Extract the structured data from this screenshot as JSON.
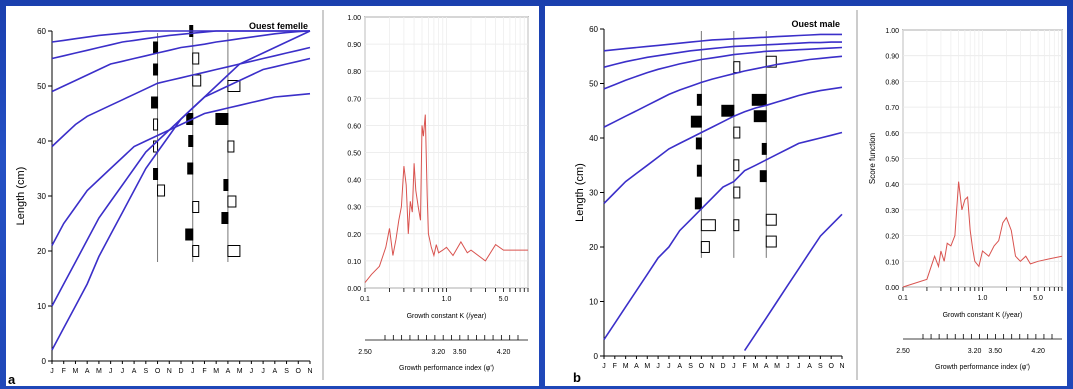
{
  "chart_data": [
    {
      "id": "a",
      "type": "line",
      "panel_letter": "a",
      "title": "Ouest femelle",
      "ylabel": "Length (cm)",
      "ylim": [
        0,
        60
      ],
      "yticks": [
        "0",
        "10",
        "20",
        "30",
        "40",
        "50",
        "60"
      ],
      "month_labels": [
        "J",
        "F",
        "M",
        "A",
        "M",
        "J",
        "J",
        "A",
        "S",
        "O",
        "N",
        "D",
        "J",
        "F",
        "M",
        "A",
        "M",
        "J",
        "J",
        "A",
        "S",
        "O",
        "N"
      ],
      "series": [
        {
          "values": [
            2,
            6,
            10,
            14,
            19,
            23,
            27,
            31,
            35,
            38,
            41,
            44,
            46,
            48,
            50,
            52,
            54,
            55,
            56,
            57,
            58,
            59,
            60
          ]
        },
        {
          "values": [
            10,
            14,
            18,
            22,
            26,
            29,
            32,
            35,
            38,
            40,
            42,
            44,
            46,
            48,
            49,
            50,
            51,
            52,
            53,
            53.5,
            54,
            54.5,
            55
          ]
        },
        {
          "values": [
            21,
            25,
            28,
            31,
            33,
            35,
            37,
            39,
            40,
            41,
            42,
            43,
            44,
            45,
            45.5,
            46,
            46.5,
            47,
            47.5,
            48,
            48.2,
            48.4,
            48.6
          ]
        },
        {
          "values": [
            39,
            41,
            43,
            44.5,
            45.5,
            46.5,
            47.5,
            48.5,
            49.5,
            50.5,
            51,
            51.5,
            52,
            52.5,
            53,
            53.5,
            54,
            54.5,
            55,
            55.5,
            56,
            56.5,
            57
          ]
        },
        {
          "values": [
            49,
            50,
            51,
            52,
            53,
            54,
            54.5,
            55,
            55.5,
            56,
            56.5,
            57,
            57.3,
            57.6,
            58,
            58.3,
            58.6,
            58.9,
            59.2,
            59.5,
            59.7,
            59.9,
            60
          ]
        },
        {
          "values": [
            55,
            55.5,
            56,
            56.5,
            57,
            57.5,
            58,
            58.3,
            58.6,
            58.9,
            59.2,
            59.4,
            59.6,
            59.8,
            60,
            60,
            60,
            60,
            60,
            60,
            60,
            60,
            60
          ]
        },
        {
          "values": [
            58,
            58.3,
            58.6,
            58.9,
            59.2,
            59.4,
            59.6,
            59.8,
            60,
            60,
            60,
            60,
            60,
            60,
            60,
            60,
            60,
            60,
            60,
            60,
            60,
            60,
            60
          ]
        }
      ]
    },
    {
      "id": "a_score",
      "type": "line",
      "xscale": "log",
      "xlabel": "Growth constant K (/year)",
      "x2label": "Growth performance index (φ')",
      "ylim": [
        0,
        1
      ],
      "yticks": [
        "0.00",
        "0.10",
        "0.20",
        "0.30",
        "0.40",
        "0.50",
        "0.60",
        "0.70",
        "0.80",
        "0.90",
        "1.00"
      ],
      "xticks": [
        "0.1",
        "1.0",
        "5.0"
      ],
      "x2ticks": [
        "2.50",
        "3.20",
        "3.50",
        "4.20"
      ],
      "x": [
        0.1,
        0.12,
        0.15,
        0.18,
        0.2,
        0.22,
        0.24,
        0.26,
        0.28,
        0.3,
        0.32,
        0.34,
        0.36,
        0.38,
        0.4,
        0.42,
        0.45,
        0.48,
        0.5,
        0.52,
        0.55,
        0.58,
        0.6,
        0.62,
        0.65,
        0.7,
        0.75,
        0.8,
        0.9,
        1.0,
        1.2,
        1.5,
        1.8,
        2.0,
        3.0,
        4.0,
        5.0,
        7.0,
        10.0
      ],
      "values": [
        0.02,
        0.05,
        0.08,
        0.15,
        0.22,
        0.12,
        0.18,
        0.25,
        0.3,
        0.45,
        0.38,
        0.2,
        0.32,
        0.28,
        0.46,
        0.36,
        0.3,
        0.25,
        0.6,
        0.56,
        0.64,
        0.34,
        0.2,
        0.18,
        0.15,
        0.12,
        0.16,
        0.13,
        0.14,
        0.15,
        0.12,
        0.17,
        0.13,
        0.14,
        0.1,
        0.16,
        0.14,
        0.14,
        0.14
      ]
    },
    {
      "id": "b",
      "type": "line",
      "panel_letter": "b",
      "title": "Ouest male",
      "ylabel": "Length (cm)",
      "ylim": [
        0,
        60
      ],
      "yticks": [
        "0",
        "10",
        "20",
        "30",
        "40",
        "50",
        "60"
      ],
      "month_labels": [
        "J",
        "F",
        "M",
        "A",
        "M",
        "J",
        "J",
        "A",
        "S",
        "O",
        "N",
        "D",
        "J",
        "F",
        "M",
        "A",
        "M",
        "J",
        "J",
        "A",
        "S",
        "O",
        "N"
      ],
      "series": [
        {
          "values": [
            0,
            0,
            0,
            0,
            0,
            0,
            0,
            0,
            0,
            0,
            0,
            0,
            0,
            1,
            4,
            7,
            10,
            13,
            16,
            19,
            22,
            24,
            26
          ]
        },
        {
          "values": [
            3,
            6,
            9,
            12,
            15,
            18,
            20,
            23,
            25,
            27,
            29,
            31,
            32,
            34,
            35,
            36,
            37,
            38,
            39,
            39.5,
            40,
            40.5,
            41
          ]
        },
        {
          "values": [
            28,
            30,
            32,
            33.5,
            35,
            36.5,
            38,
            39,
            40,
            41,
            42,
            43,
            44,
            44.8,
            45.5,
            46,
            46.6,
            47.2,
            47.8,
            48.3,
            48.7,
            49,
            49.3
          ]
        },
        {
          "values": [
            42,
            43,
            44,
            45,
            46,
            47,
            48,
            48.8,
            49.5,
            50.2,
            50.8,
            51.3,
            51.8,
            52.3,
            52.7,
            53.1,
            53.5,
            53.8,
            54.1,
            54.4,
            54.6,
            54.8,
            55
          ]
        },
        {
          "values": [
            49,
            49.8,
            50.6,
            51.3,
            52,
            52.6,
            53.1,
            53.6,
            54,
            54.4,
            54.7,
            55,
            55.3,
            55.5,
            55.7,
            55.9,
            56,
            56.1,
            56.2,
            56.3,
            56.4,
            56.5,
            56.6
          ]
        },
        {
          "values": [
            53,
            53.5,
            54,
            54.4,
            54.8,
            55.1,
            55.4,
            55.7,
            56,
            56.2,
            56.4,
            56.6,
            56.8,
            56.9,
            57,
            57.1,
            57.2,
            57.3,
            57.4,
            57.5,
            57.5,
            57.6,
            57.6
          ]
        },
        {
          "values": [
            56,
            56.2,
            56.4,
            56.6,
            56.8,
            57,
            57.2,
            57.4,
            57.6,
            57.8,
            58,
            58.1,
            58.2,
            58.3,
            58.4,
            58.5,
            58.6,
            58.7,
            58.8,
            58.9,
            59,
            59,
            59
          ]
        }
      ]
    },
    {
      "id": "b_score",
      "type": "line",
      "xscale": "log",
      "ylabel": "Score function",
      "xlabel": "Growth constant K (/year)",
      "x2label": "Growth performance index (φ')",
      "ylim": [
        0,
        1
      ],
      "yticks": [
        "0.00",
        "0.10",
        "0.20",
        "0.30",
        "0.40",
        "0.50",
        "0.60",
        "0.70",
        "0.80",
        "0.90",
        "1.00"
      ],
      "xticks": [
        "0.1",
        "1.0",
        "5.0"
      ],
      "x2ticks": [
        "2.50",
        "3.20",
        "3.50",
        "4.20"
      ],
      "x": [
        0.1,
        0.2,
        0.25,
        0.28,
        0.3,
        0.33,
        0.36,
        0.4,
        0.45,
        0.5,
        0.55,
        0.6,
        0.65,
        0.7,
        0.75,
        0.8,
        0.9,
        1.0,
        1.2,
        1.4,
        1.6,
        1.8,
        2.0,
        2.3,
        2.6,
        3.0,
        3.5,
        4.0,
        5.0,
        7.0,
        10.0
      ],
      "values": [
        0.0,
        0.03,
        0.12,
        0.08,
        0.14,
        0.1,
        0.17,
        0.16,
        0.2,
        0.41,
        0.3,
        0.34,
        0.35,
        0.22,
        0.15,
        0.1,
        0.08,
        0.14,
        0.12,
        0.16,
        0.18,
        0.25,
        0.27,
        0.22,
        0.12,
        0.1,
        0.12,
        0.09,
        0.1,
        0.11,
        0.12
      ]
    }
  ]
}
